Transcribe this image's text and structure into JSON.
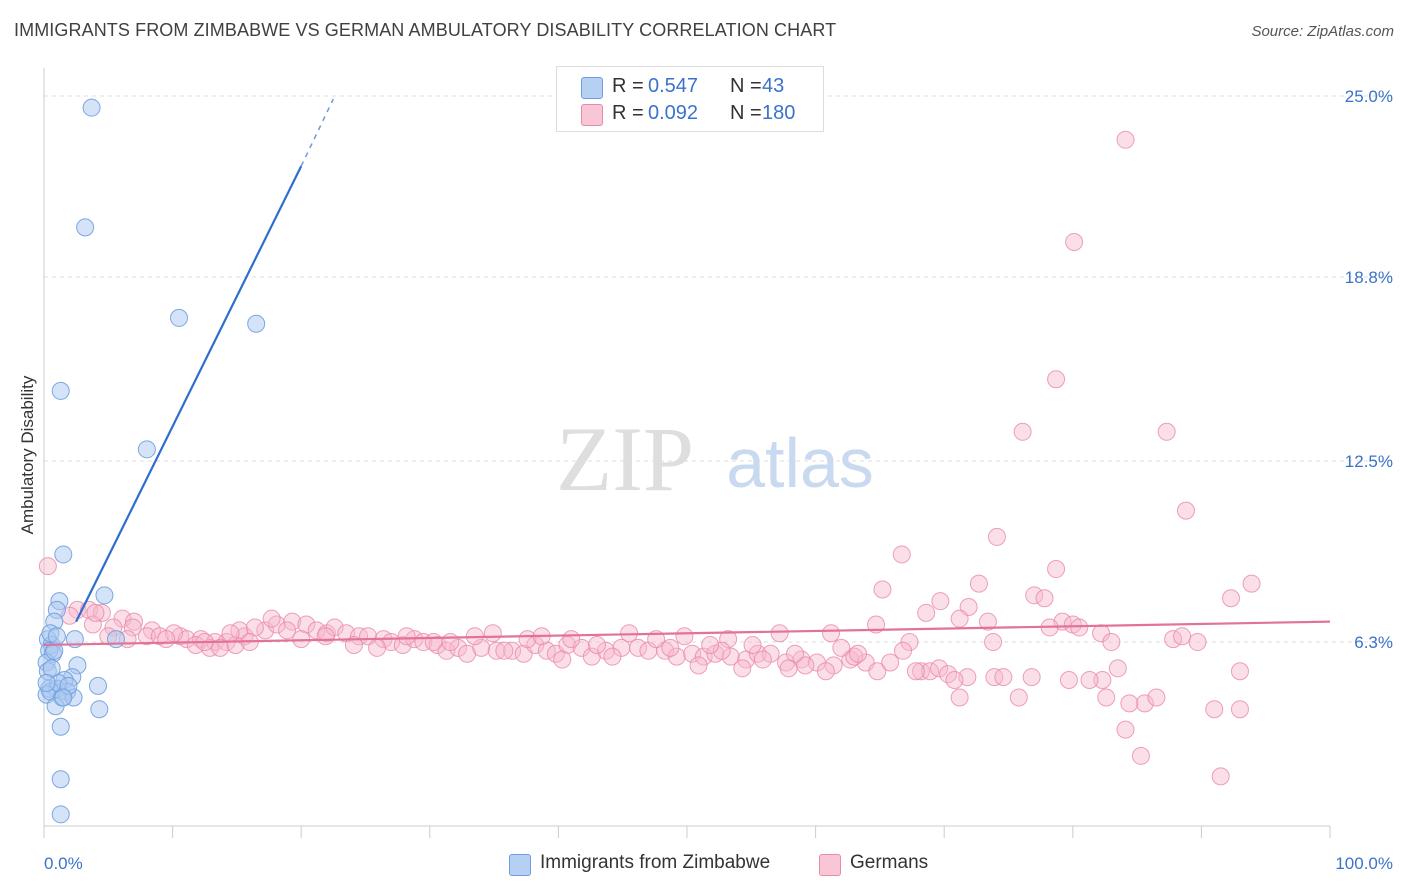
{
  "title": "IMMIGRANTS FROM ZIMBABWE VS GERMAN AMBULATORY DISABILITY CORRELATION CHART",
  "source": "Source: ZipAtlas.com",
  "watermark": {
    "zip": "ZIP",
    "atlas": "atlas"
  },
  "legend": {
    "r_label": "R =",
    "n_label": "N =",
    "series1": {
      "r": "0.547",
      "n": "43"
    },
    "series2": {
      "r": "0.092",
      "n": "180"
    }
  },
  "colors": {
    "blue_fill": "#a9c8f0",
    "blue_stroke": "#6f9ee0",
    "blue_line": "#2f6fcc",
    "pink_fill": "#f6b8cc",
    "pink_stroke": "#e98aa8",
    "pink_line": "#e2729a",
    "tick_label": "#3a73c9",
    "grid": "#dcdcdc"
  },
  "chart_data": {
    "type": "scatter",
    "title": "IMMIGRANTS FROM ZIMBABWE VS GERMAN AMBULATORY DISABILITY CORRELATION CHART",
    "xlabel": "",
    "ylabel": "Ambulatory Disability",
    "xlim": [
      0,
      100
    ],
    "ylim": [
      0,
      25.0
    ],
    "x_tick_labels": [
      "0.0%",
      "100.0%"
    ],
    "y_ticks": [
      6.3,
      12.5,
      18.8,
      25.0
    ],
    "y_tick_labels": [
      "6.3%",
      "12.5%",
      "18.8%",
      "25.0%"
    ],
    "grid": true,
    "legend_position": "top-center",
    "series": [
      {
        "name": "Immigrants from Zimbabwe",
        "color": "blue",
        "r": 0.547,
        "n": 43,
        "trendline": {
          "x": [
            2.5,
            20.0
          ],
          "y": [
            7.0,
            22.6
          ],
          "dashed_extension_to": [
            22.5,
            24.9
          ]
        },
        "points": [
          [
            3.7,
            24.6
          ],
          [
            3.2,
            20.5
          ],
          [
            10.5,
            17.4
          ],
          [
            16.5,
            17.2
          ],
          [
            1.3,
            14.9
          ],
          [
            8.0,
            12.9
          ],
          [
            1.5,
            9.3
          ],
          [
            4.7,
            7.9
          ],
          [
            1.2,
            7.7
          ],
          [
            1.0,
            7.4
          ],
          [
            0.8,
            7.0
          ],
          [
            5.6,
            6.4
          ],
          [
            2.4,
            6.4
          ],
          [
            0.3,
            6.4
          ],
          [
            0.6,
            6.2
          ],
          [
            0.4,
            6.0
          ],
          [
            0.7,
            5.9
          ],
          [
            0.2,
            5.6
          ],
          [
            2.6,
            5.5
          ],
          [
            0.3,
            5.3
          ],
          [
            2.2,
            5.1
          ],
          [
            1.6,
            5.0
          ],
          [
            4.2,
            4.8
          ],
          [
            0.4,
            4.7
          ],
          [
            1.0,
            4.7
          ],
          [
            1.8,
            4.6
          ],
          [
            0.2,
            4.5
          ],
          [
            0.5,
            4.6
          ],
          [
            1.4,
            4.4
          ],
          [
            2.3,
            4.4
          ],
          [
            0.9,
            4.1
          ],
          [
            4.3,
            4.0
          ],
          [
            1.3,
            3.4
          ],
          [
            1.3,
            1.6
          ],
          [
            1.3,
            0.4
          ],
          [
            1.1,
            4.9
          ],
          [
            0.6,
            5.4
          ],
          [
            1.9,
            4.8
          ],
          [
            0.8,
            6.0
          ],
          [
            0.5,
            6.6
          ],
          [
            1.5,
            4.4
          ],
          [
            0.2,
            4.9
          ],
          [
            1.0,
            6.5
          ]
        ]
      },
      {
        "name": "Germans",
        "color": "pink",
        "r": 0.092,
        "n": 180,
        "trendline": {
          "x": [
            0.0,
            100.0
          ],
          "y": [
            6.2,
            7.0
          ]
        },
        "points": [
          [
            84.1,
            23.5
          ],
          [
            80.1,
            20.0
          ],
          [
            78.7,
            15.3
          ],
          [
            76.1,
            13.5
          ],
          [
            87.3,
            13.5
          ],
          [
            88.8,
            10.8
          ],
          [
            74.1,
            9.9
          ],
          [
            66.7,
            9.3
          ],
          [
            78.7,
            8.8
          ],
          [
            93.9,
            8.3
          ],
          [
            72.7,
            8.3
          ],
          [
            65.2,
            8.1
          ],
          [
            69.7,
            7.7
          ],
          [
            77.0,
            7.9
          ],
          [
            77.8,
            7.8
          ],
          [
            92.3,
            7.8
          ],
          [
            71.9,
            7.5
          ],
          [
            68.6,
            7.3
          ],
          [
            71.2,
            7.1
          ],
          [
            79.2,
            7.0
          ],
          [
            73.4,
            7.0
          ],
          [
            80.0,
            6.9
          ],
          [
            64.7,
            6.9
          ],
          [
            78.2,
            6.8
          ],
          [
            80.5,
            6.8
          ],
          [
            82.2,
            6.6
          ],
          [
            89.7,
            6.3
          ],
          [
            73.8,
            6.3
          ],
          [
            67.3,
            6.3
          ],
          [
            83.0,
            6.3
          ],
          [
            0.3,
            8.9
          ],
          [
            2.6,
            7.4
          ],
          [
            3.5,
            7.4
          ],
          [
            4.5,
            7.3
          ],
          [
            6.1,
            7.1
          ],
          [
            7.0,
            7.0
          ],
          [
            3.8,
            6.9
          ],
          [
            5.4,
            6.8
          ],
          [
            6.9,
            6.8
          ],
          [
            8.4,
            6.7
          ],
          [
            8.0,
            6.5
          ],
          [
            9.0,
            6.5
          ],
          [
            10.6,
            6.5
          ],
          [
            11.1,
            6.4
          ],
          [
            12.2,
            6.4
          ],
          [
            13.3,
            6.3
          ],
          [
            14.2,
            6.3
          ],
          [
            15.6,
            6.5
          ],
          [
            10.1,
            6.6
          ],
          [
            11.8,
            6.2
          ],
          [
            12.9,
            6.1
          ],
          [
            13.7,
            6.1
          ],
          [
            14.9,
            6.2
          ],
          [
            15.2,
            6.7
          ],
          [
            17.2,
            6.7
          ],
          [
            16.4,
            6.8
          ],
          [
            18.1,
            6.9
          ],
          [
            19.3,
            7.0
          ],
          [
            17.7,
            7.1
          ],
          [
            20.4,
            6.9
          ],
          [
            21.2,
            6.7
          ],
          [
            22.0,
            6.6
          ],
          [
            22.6,
            6.8
          ],
          [
            23.5,
            6.6
          ],
          [
            24.5,
            6.5
          ],
          [
            25.2,
            6.5
          ],
          [
            26.4,
            6.4
          ],
          [
            27.0,
            6.3
          ],
          [
            27.9,
            6.2
          ],
          [
            28.8,
            6.4
          ],
          [
            29.5,
            6.3
          ],
          [
            30.6,
            6.2
          ],
          [
            31.3,
            6.0
          ],
          [
            32.2,
            6.1
          ],
          [
            32.9,
            5.9
          ],
          [
            34.0,
            6.1
          ],
          [
            35.2,
            6.0
          ],
          [
            36.4,
            6.0
          ],
          [
            37.3,
            5.9
          ],
          [
            38.2,
            6.2
          ],
          [
            39.1,
            6.0
          ],
          [
            39.8,
            5.9
          ],
          [
            40.7,
            6.2
          ],
          [
            41.8,
            6.1
          ],
          [
            42.6,
            5.8
          ],
          [
            43.7,
            6.0
          ],
          [
            44.9,
            6.1
          ],
          [
            46.2,
            6.1
          ],
          [
            47.0,
            6.0
          ],
          [
            48.3,
            6.0
          ],
          [
            49.2,
            5.8
          ],
          [
            50.4,
            5.9
          ],
          [
            51.3,
            5.8
          ],
          [
            52.2,
            5.9
          ],
          [
            53.4,
            5.8
          ],
          [
            54.6,
            5.7
          ],
          [
            55.5,
            5.9
          ],
          [
            56.5,
            5.9
          ],
          [
            57.7,
            5.6
          ],
          [
            58.9,
            5.7
          ],
          [
            60.1,
            5.6
          ],
          [
            61.4,
            5.5
          ],
          [
            62.7,
            5.7
          ],
          [
            63.9,
            5.6
          ],
          [
            33.5,
            6.5
          ],
          [
            37.6,
            6.4
          ],
          [
            41.0,
            6.4
          ],
          [
            45.5,
            6.6
          ],
          [
            49.8,
            6.5
          ],
          [
            53.2,
            6.4
          ],
          [
            57.2,
            6.6
          ],
          [
            61.2,
            6.6
          ],
          [
            66.8,
            6.0
          ],
          [
            52.7,
            6.0
          ],
          [
            55.9,
            5.7
          ],
          [
            59.2,
            5.5
          ],
          [
            63.0,
            5.8
          ],
          [
            64.8,
            5.3
          ],
          [
            65.8,
            5.6
          ],
          [
            68.2,
            5.3
          ],
          [
            68.9,
            5.3
          ],
          [
            69.6,
            5.4
          ],
          [
            70.3,
            5.2
          ],
          [
            71.2,
            4.4
          ],
          [
            71.8,
            5.1
          ],
          [
            73.9,
            5.1
          ],
          [
            75.8,
            4.4
          ],
          [
            76.8,
            5.1
          ],
          [
            82.6,
            4.4
          ],
          [
            85.6,
            4.2
          ],
          [
            84.1,
            3.3
          ],
          [
            85.3,
            2.4
          ],
          [
            87.8,
            6.4
          ],
          [
            88.5,
            6.5
          ],
          [
            91.0,
            4.0
          ],
          [
            93.0,
            4.0
          ],
          [
            91.5,
            1.7
          ],
          [
            93.0,
            5.3
          ],
          [
            82.3,
            5.0
          ],
          [
            83.5,
            5.4
          ],
          [
            84.4,
            4.2
          ],
          [
            30.3,
            6.3
          ],
          [
            34.9,
            6.6
          ],
          [
            38.7,
            6.5
          ],
          [
            43.0,
            6.2
          ],
          [
            47.6,
            6.4
          ],
          [
            51.8,
            6.2
          ],
          [
            55.1,
            6.2
          ],
          [
            58.4,
            5.9
          ],
          [
            62.0,
            6.1
          ],
          [
            2.0,
            7.2
          ],
          [
            4.0,
            7.3
          ],
          [
            5.0,
            6.5
          ],
          [
            6.5,
            6.4
          ],
          [
            9.5,
            6.4
          ],
          [
            12.5,
            6.3
          ],
          [
            14.5,
            6.6
          ],
          [
            16.0,
            6.3
          ],
          [
            18.9,
            6.7
          ],
          [
            20.0,
            6.4
          ],
          [
            21.9,
            6.5
          ],
          [
            24.1,
            6.2
          ],
          [
            25.9,
            6.1
          ],
          [
            28.2,
            6.5
          ],
          [
            31.6,
            6.3
          ],
          [
            35.8,
            6.0
          ],
          [
            40.3,
            5.7
          ],
          [
            44.2,
            5.8
          ],
          [
            48.7,
            6.1
          ],
          [
            50.9,
            5.5
          ],
          [
            54.3,
            5.4
          ],
          [
            57.9,
            5.4
          ],
          [
            60.8,
            5.3
          ],
          [
            63.3,
            5.9
          ],
          [
            67.8,
            5.3
          ],
          [
            70.8,
            5.0
          ],
          [
            74.6,
            5.1
          ],
          [
            79.7,
            5.0
          ],
          [
            81.3,
            5.0
          ],
          [
            86.5,
            4.4
          ]
        ]
      }
    ]
  },
  "bottom_legend": {
    "item1": "Immigrants from Zimbabwe",
    "item2": "Germans"
  }
}
